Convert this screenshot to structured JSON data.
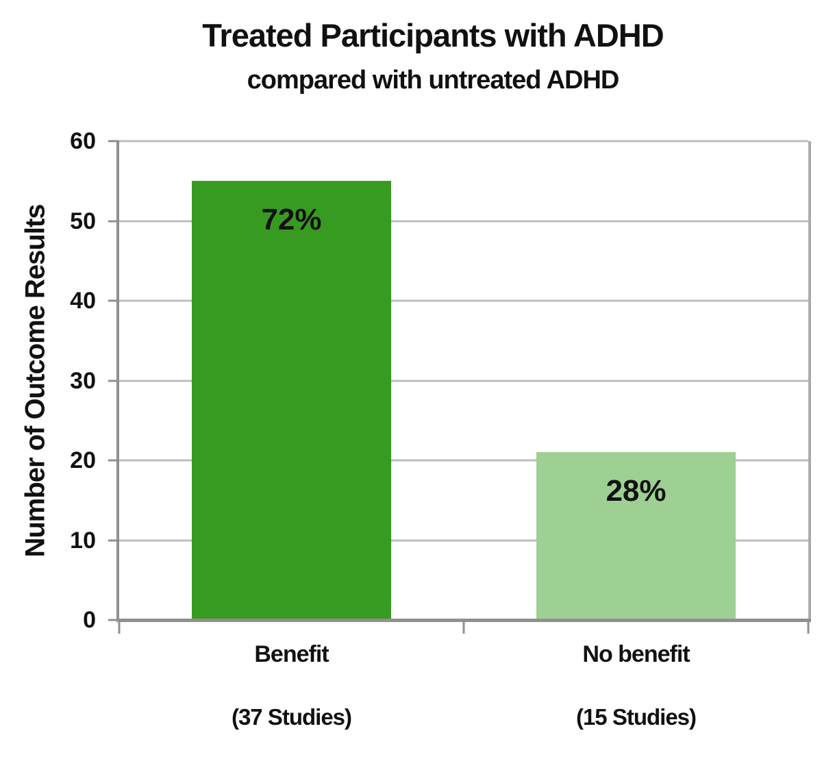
{
  "chart_data": {
    "type": "bar",
    "title": "Treated Participants with ADHD",
    "subtitle": "compared with untreated ADHD",
    "xlabel": "",
    "ylabel": "Number of Outcome Results",
    "categories": [
      "Benefit",
      "No benefit"
    ],
    "category_sublabels": [
      "(37 Studies)",
      "(15 Studies)"
    ],
    "values": [
      55,
      21
    ],
    "data_labels": [
      "72%",
      "28%"
    ],
    "bar_colors": [
      "#389b21",
      "#9fd093"
    ],
    "ylim": [
      0,
      60
    ],
    "yticks": [
      0,
      10,
      20,
      30,
      40,
      50,
      60
    ],
    "grid": true,
    "legend": false,
    "gridline_color": "#bdbdbd",
    "axis_color": "#8f8f8f",
    "plot_border_color": "#ababab",
    "text_color": "#111111",
    "background_color": "#ffffff"
  }
}
